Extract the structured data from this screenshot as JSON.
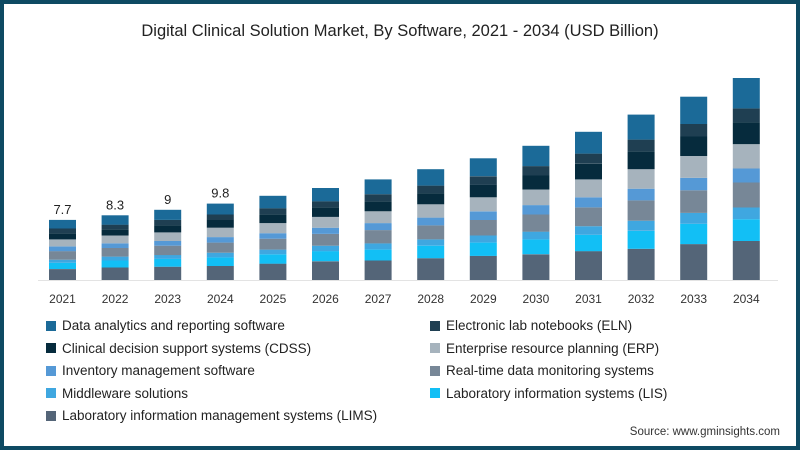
{
  "chart_data": {
    "type": "bar",
    "stacked": true,
    "title": "Digital Clinical Solution Market, By Software, 2021 - 2034 (USD Billion)",
    "xlabel": "",
    "ylabel": "",
    "ylim": [
      0,
      26
    ],
    "grid": false,
    "legend_position": "bottom",
    "categories": [
      "2021",
      "2022",
      "2023",
      "2024",
      "2025",
      "2026",
      "2027",
      "2028",
      "2029",
      "2030",
      "2031",
      "2032",
      "2033",
      "2034"
    ],
    "totals_labels": [
      "7.7",
      "8.3",
      "9",
      "9.8",
      "",
      "",
      "",
      "",
      "",
      "",
      "",
      "",
      "",
      ""
    ],
    "series": [
      {
        "name": "Laboratory information management systems (LIMS)",
        "color": "#546578",
        "values": [
          1.4,
          1.6,
          1.7,
          1.8,
          2.1,
          2.4,
          2.5,
          2.8,
          3.1,
          3.3,
          3.7,
          4.0,
          4.6,
          5.0
        ]
      },
      {
        "name": "Laboratory information systems (LIS)",
        "color": "#12bff5",
        "values": [
          0.8,
          0.9,
          1.0,
          1.1,
          1.2,
          1.3,
          1.4,
          1.6,
          1.7,
          1.9,
          2.1,
          2.3,
          2.6,
          2.8
        ]
      },
      {
        "name": "Middleware solutions",
        "color": "#3fa7e0",
        "values": [
          0.4,
          0.5,
          0.5,
          0.6,
          0.6,
          0.7,
          0.8,
          0.8,
          0.9,
          1.0,
          1.1,
          1.3,
          1.4,
          1.5
        ]
      },
      {
        "name": "Real-time data monitoring systems",
        "color": "#778797",
        "values": [
          1.1,
          1.1,
          1.2,
          1.3,
          1.4,
          1.5,
          1.7,
          1.8,
          2.0,
          2.2,
          2.4,
          2.6,
          2.9,
          3.2
        ]
      },
      {
        "name": "Inventory management software",
        "color": "#5599d6",
        "values": [
          0.6,
          0.6,
          0.6,
          0.7,
          0.7,
          0.8,
          0.9,
          1.0,
          1.1,
          1.2,
          1.3,
          1.5,
          1.6,
          1.8
        ]
      },
      {
        "name": "Enterprise resource planning (ERP)",
        "color": "#a6b3bd",
        "values": [
          0.9,
          1.0,
          1.1,
          1.2,
          1.3,
          1.4,
          1.5,
          1.7,
          1.8,
          2.0,
          2.3,
          2.5,
          2.8,
          3.1
        ]
      },
      {
        "name": "Clinical decision support systems (CDSS)",
        "color": "#062b3d",
        "values": [
          0.8,
          0.8,
          0.9,
          1.0,
          1.1,
          1.2,
          1.3,
          1.4,
          1.6,
          1.8,
          2.0,
          2.3,
          2.5,
          2.8
        ]
      },
      {
        "name": "Electronic lab notebooks (ELN)",
        "color": "#1f3f52",
        "values": [
          0.6,
          0.6,
          0.7,
          0.7,
          0.8,
          0.8,
          0.9,
          1.0,
          1.1,
          1.2,
          1.3,
          1.5,
          1.6,
          1.8
        ]
      },
      {
        "name": "Data analytics and reporting software",
        "color": "#1b6a98",
        "values": [
          1.1,
          1.2,
          1.3,
          1.4,
          1.6,
          1.7,
          1.9,
          2.1,
          2.3,
          2.6,
          2.8,
          3.2,
          3.5,
          3.9
        ]
      }
    ],
    "legend_order": [
      "Data analytics and reporting software",
      "Electronic lab notebooks (ELN)",
      "Clinical decision support systems (CDSS)",
      "Enterprise resource planning (ERP)",
      "Inventory management software",
      "Real-time data monitoring systems",
      "Middleware solutions",
      "Laboratory information systems (LIS)",
      "Laboratory information management systems (LIMS)"
    ]
  },
  "source": "Source: www.gminsights.com",
  "colors": {
    "frame": "#0e4a63"
  }
}
